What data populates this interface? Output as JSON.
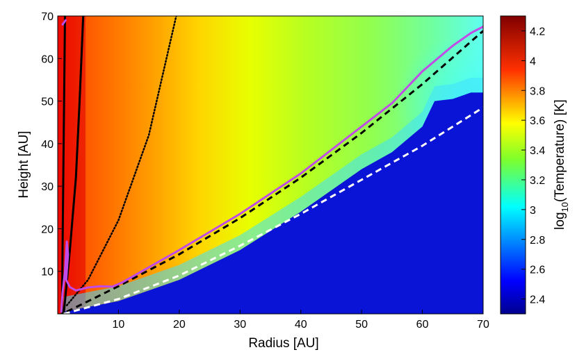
{
  "chart_data": {
    "type": "heatmap",
    "xlabel": "Radius [AU]",
    "ylabel": "Height [AU]",
    "xlim": [
      0,
      70
    ],
    "ylim": [
      0,
      70
    ],
    "x_ticks": [
      "10",
      "20",
      "30",
      "40",
      "50",
      "60",
      "70"
    ],
    "y_ticks": [
      "10",
      "20",
      "30",
      "40",
      "50",
      "60",
      "70"
    ],
    "colorbar": {
      "label_prefix": "log",
      "label_sub": "10",
      "label_suffix": "(Temperature) [K]",
      "range": [
        2.3,
        4.3
      ],
      "ticks": [
        "2.4",
        "2.6",
        "2.8",
        "3",
        "3.2",
        "3.4",
        "3.6",
        "3.8",
        "4",
        "4.2"
      ],
      "colormap": "jet"
    },
    "region_boundary": {
      "description": "edge of the cold (log T ~ 2.3) region",
      "points": [
        [
          1,
          0.5
        ],
        [
          10,
          3
        ],
        [
          20,
          8
        ],
        [
          30,
          15
        ],
        [
          40,
          24
        ],
        [
          50,
          34
        ],
        [
          55,
          38
        ],
        [
          60,
          44
        ],
        [
          62,
          50
        ],
        [
          65,
          50.5
        ],
        [
          68,
          52
        ],
        [
          70,
          52
        ]
      ]
    },
    "series": [
      {
        "style": "solid-black",
        "color": "#000000",
        "points": [
          [
            1,
            0
          ],
          [
            2,
            15
          ],
          [
            3,
            32
          ],
          [
            3.6,
            50
          ],
          [
            4.2,
            70
          ]
        ]
      },
      {
        "style": "solid-black",
        "color": "#000000",
        "points": [
          [
            0.7,
            0
          ],
          [
            0.9,
            30
          ],
          [
            1.2,
            70
          ]
        ]
      },
      {
        "style": "dotted-black",
        "color": "#000000",
        "points": [
          [
            1.5,
            2
          ],
          [
            5,
            8
          ],
          [
            10,
            22
          ],
          [
            15,
            42
          ],
          [
            19.5,
            70
          ]
        ]
      },
      {
        "style": "dashed-black",
        "color": "#000000",
        "points": [
          [
            1.5,
            0.5
          ],
          [
            10,
            6.5
          ],
          [
            20,
            14
          ],
          [
            30,
            22.5
          ],
          [
            40,
            32
          ],
          [
            50,
            42.5
          ],
          [
            60,
            54
          ],
          [
            70,
            66.5
          ]
        ]
      },
      {
        "style": "dashed-white",
        "color": "#ffffff",
        "points": [
          [
            1,
            0
          ],
          [
            10,
            3.5
          ],
          [
            20,
            9
          ],
          [
            30,
            16
          ],
          [
            40,
            23.5
          ],
          [
            50,
            31.5
          ],
          [
            60,
            39.5
          ],
          [
            70,
            48.5
          ]
        ]
      },
      {
        "style": "solid-purple",
        "color": "#c04be8",
        "points": [
          [
            0.6,
            0.5
          ],
          [
            0.8,
            5
          ],
          [
            1.2,
            10
          ],
          [
            1.5,
            17
          ],
          [
            1.7,
            14
          ],
          [
            1.4,
            8
          ],
          [
            2,
            6.3
          ],
          [
            3,
            5.5
          ],
          [
            5,
            6.2
          ],
          [
            7,
            6.5
          ],
          [
            9,
            6.4
          ],
          [
            10.5,
            7.3
          ],
          [
            20,
            15
          ],
          [
            30,
            23.5
          ],
          [
            40,
            33
          ],
          [
            50,
            44
          ],
          [
            55,
            49.5
          ],
          [
            60,
            57
          ],
          [
            65,
            63
          ],
          [
            68,
            66
          ],
          [
            70,
            67.5
          ]
        ]
      },
      {
        "style": "solid-purple",
        "color": "#c04be8",
        "points": [
          [
            0.8,
            68
          ],
          [
            1.3,
            69
          ]
        ]
      }
    ]
  }
}
